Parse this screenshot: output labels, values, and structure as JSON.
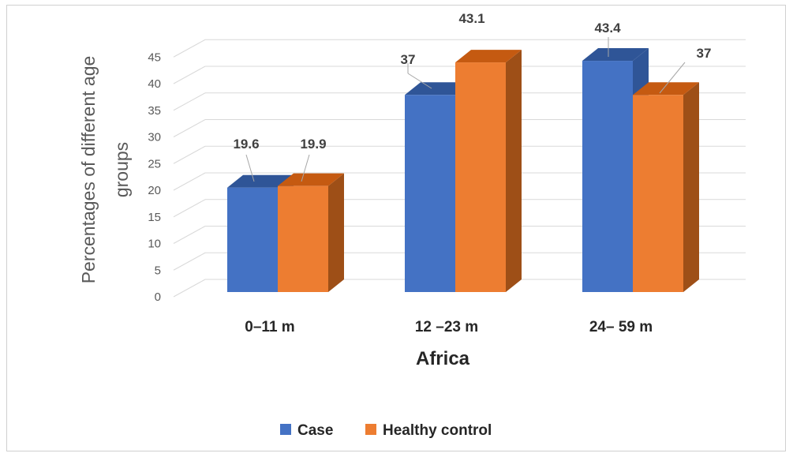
{
  "chart_data": {
    "type": "bar",
    "style": "3d-clustered-column",
    "categories": [
      "0–11 m",
      "12 –23 m",
      "24– 59 m"
    ],
    "series": [
      {
        "name": "Case",
        "values": [
          19.6,
          37,
          43.4
        ],
        "color": "#4472c4",
        "side_color": "#2f5597",
        "top_color": "#2f5597"
      },
      {
        "name": "Healthy control",
        "values": [
          19.9,
          43.1,
          37
        ],
        "color": "#ed7d31",
        "side_color": "#9e4f17",
        "top_color": "#c55a11"
      }
    ],
    "data_labels": [
      [
        "19.6",
        "37",
        "43.4"
      ],
      [
        "19.9",
        "43.1",
        "37"
      ]
    ],
    "xlabel": "Africa",
    "ylabel_lines": [
      "Percentages of different  age",
      "groups"
    ],
    "ylim": [
      0,
      45
    ],
    "yticks": [
      "0",
      "5",
      "10",
      "15",
      "20",
      "25",
      "30",
      "35",
      "40",
      "45"
    ],
    "grid": true,
    "legend_position": "bottom"
  }
}
